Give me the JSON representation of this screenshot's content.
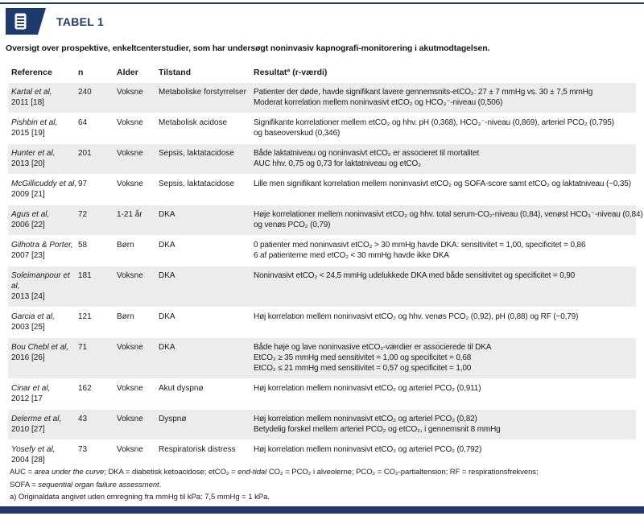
{
  "colors": {
    "navy": "#1e3a6c",
    "stripe": "#ececec",
    "text": "#1a1a1a"
  },
  "header": {
    "tag": "TABEL 1",
    "icon": "document-lines-icon",
    "subtitle": "Oversigt over prospektive, enkeltcenterstudier, som har undersøgt noninvasiv kapnografi-monitorering i akutmodtagelsen."
  },
  "table": {
    "columns": {
      "reference": "Reference",
      "n": "n",
      "alder": "Alder",
      "tilstand": "Tilstand",
      "resultat": "Resultatª (r-værdi)"
    },
    "rows": [
      {
        "ref": "Kartal et al,",
        "ref2": "2011 [18]",
        "n": "240",
        "alder": "Voksne",
        "tilstand": "Metaboliske forstyrrelser",
        "resultat": [
          "Patienter der døde, havde signifikant lavere gennemsnits-etCO₂: 27 ± 7 mmHg vs. 30 ± 7,5 mmHg",
          "Moderat korrelation mellem noninvasivt etCO₂ og HCO₃⁻-niveau (0,506)"
        ]
      },
      {
        "ref": "Pishbin et al,",
        "ref2": "2015 [19]",
        "n": "64",
        "alder": "Voksne",
        "tilstand": "Metabolisk acidose",
        "resultat": [
          "Signifikante korrelationer mellem etCO₂ og hhv. pH (0,368), HCO₃⁻-niveau (0,869), arteriel PCO₂ (0,795)",
          "og baseoverskud (0,346)"
        ]
      },
      {
        "ref": "Hunter et al,",
        "ref2": "2013 [20]",
        "n": "201",
        "alder": "Voksne",
        "tilstand": "Sepsis, laktatacidose",
        "resultat": [
          "Både laktatniveau og noninvasivt etCO₂ er associeret til mortalitet",
          "AUC hhv. 0,75 og 0,73 for laktatniveau og etCO₂"
        ]
      },
      {
        "ref": "McGillicuddy et al,",
        "ref2": "2009 [21]",
        "n": "97",
        "alder": "Voksne",
        "tilstand": "Sepsis, laktatacidose",
        "resultat": [
          "Lille men signifikant korrelation mellem noninvasivt etCO₂ og SOFA-score samt etCO₂ og laktatniveau (−0,35)"
        ]
      },
      {
        "ref": "Agus et al,",
        "ref2": "2006 [22]",
        "n": "72",
        "alder": "1-21 år",
        "tilstand": "DKA",
        "resultat": [
          "Høje korrelationer mellem noninvasivt etCO₂ og hhv. total serum-CO₂-niveau (0,84), venøst HCO₃⁻-niveau (0,84)",
          "og venøs PCO₂ (0,79)"
        ]
      },
      {
        "ref": "Gilhotra & Porter,",
        "ref2": "2007 [23]",
        "n": "58",
        "alder": "Børn",
        "tilstand": "DKA",
        "resultat": [
          "0 patienter med noninvasivt etCO₂ > 30 mmHg havde DKA: sensitivitet = 1,00, specificitet = 0,86",
          "6 af patienterne med etCO₂ < 30 mmHg havde ikke DKA"
        ]
      },
      {
        "ref": "Soleimanpour et al,",
        "ref2": "2013 [24]",
        "n": "181",
        "alder": "Voksne",
        "tilstand": "DKA",
        "resultat": [
          "Noninvasivt etCO₂ < 24,5 mmHg udelukkede DKA med både sensitivitet og specificitet = 0,90"
        ]
      },
      {
        "ref": "Garcia et al,",
        "ref2": "2003 [25]",
        "n": "121",
        "alder": "Børn",
        "tilstand": "DKA",
        "resultat": [
          "Høj korrelation mellem noninvasivt etCO₂ og hhv. venøs PCO₂ (0,92), pH (0,88) og RF (−0,79)"
        ]
      },
      {
        "ref": "Bou Chebl et al,",
        "ref2": "2016 [26]",
        "n": "71",
        "alder": "Voksne",
        "tilstand": "DKA",
        "resultat": [
          "Både høje og lave noninvasive etCO₂-værdier er associerede til DKA",
          "EtCO₂ ≥ 35 mmHg med sensitivitet = 1,00 og specificitet = 0,68",
          "EtCO₂ ≤ 21 mmHg med sensitivitet = 0,57 og specificitet = 1,00"
        ]
      },
      {
        "ref": "Cinar et al,",
        "ref2": "2012 [17",
        "n": "162",
        "alder": "Voksne",
        "tilstand": "Akut dyspnø",
        "resultat": [
          "Høj korrelation mellem noninvasivt etCO₂ og arteriel PCO₂ (0,911)"
        ]
      },
      {
        "ref": "Delerme et al,",
        "ref2": "2010 [27]",
        "n": "43",
        "alder": "Voksne",
        "tilstand": "Dyspnø",
        "resultat": [
          "Høj korrelation mellem noninvasivt etCO₂ og arteriel PCO₂ (0,82)",
          "Betydelig forskel mellem arteriel PCO₂ og etCO₂, i gennemsnit 8 mmHg"
        ]
      },
      {
        "ref": "Yosefy et al,",
        "ref2": "2004 [28]",
        "n": "73",
        "alder": "Voksne",
        "tilstand": "Respiratorisk distress",
        "resultat": [
          "Høj korrelation mellem noninvasivt etCO₂ og arteriel PCO₂ (0,792)"
        ]
      }
    ]
  },
  "footnotes": [
    {
      "segments": [
        {
          "t": "AUC = "
        },
        {
          "t": "area under the curve",
          "i": true
        },
        {
          "t": "; DKA = diabetisk ketoacidose; etCO₂ = "
        },
        {
          "t": "end-tidal",
          "i": true
        },
        {
          "t": " CO₂ = PCO₂ i alveolerne; PCO₂ = CO₂-partialtension; RF = respirationsfrekvens;"
        }
      ]
    },
    {
      "segments": [
        {
          "t": "SOFA = "
        },
        {
          "t": "sequential organ failure assessment",
          "i": true
        },
        {
          "t": "."
        }
      ]
    },
    {
      "segments": [
        {
          "t": "a) Originaldata angivet uden omregning fra mmHg til kPa: 7,5 mmHg = 1 kPa."
        }
      ]
    }
  ]
}
